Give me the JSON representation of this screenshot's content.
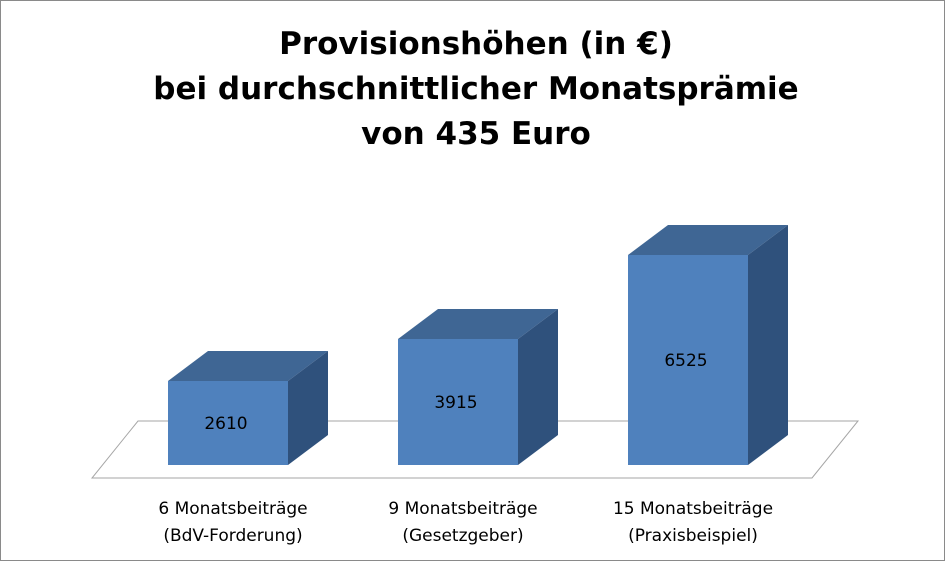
{
  "chart_data": {
    "type": "bar",
    "title_lines": [
      "Provisionshöhen (in €)",
      "bei durchschnittlicher Monatsprämie",
      "von 435 Euro"
    ],
    "categories": [
      [
        "6 Monatsbeiträge",
        "(BdV-Forderung)"
      ],
      [
        "9 Monatsbeiträge",
        "(Gesetzgeber)"
      ],
      [
        "15 Monatsbeiträge",
        "(Praxisbeispiel)"
      ]
    ],
    "values": [
      2610,
      3915,
      6525
    ],
    "data_labels": [
      "2610",
      "3915",
      "6525"
    ],
    "ylim": [
      0,
      7000
    ],
    "grid": false,
    "legend": "none",
    "three_d": true,
    "colors": {
      "front": "#4f81bd",
      "top": "#3f6694",
      "side": "#2f517c",
      "floor_line": "#a6a6a6"
    }
  }
}
